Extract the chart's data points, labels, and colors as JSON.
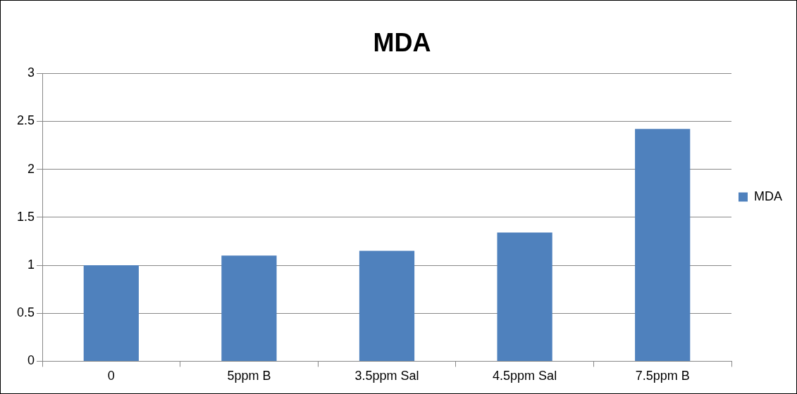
{
  "chart_data": {
    "type": "bar",
    "title": "MDA",
    "categories": [
      "0",
      "5ppm B",
      "3.5ppm Sal",
      "4.5ppm Sal",
      "7.5ppm B"
    ],
    "series": [
      {
        "name": "MDA",
        "color": "#4f81bd",
        "values": [
          1.0,
          1.1,
          1.15,
          1.34,
          2.42
        ]
      }
    ],
    "ylim": [
      0,
      3
    ],
    "yticks": [
      0,
      0.5,
      1,
      1.5,
      2,
      2.5,
      3
    ],
    "grid": "y",
    "legend": "right"
  }
}
